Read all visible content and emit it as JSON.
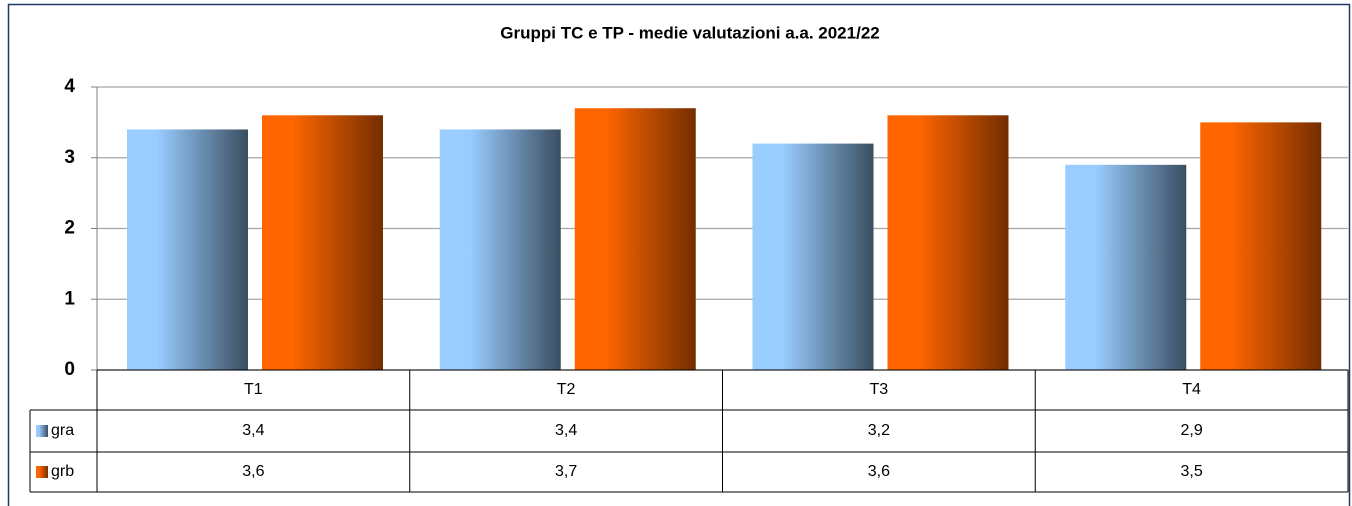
{
  "chart_data": {
    "type": "bar",
    "title": "Gruppi TC e TP - medie valutazioni a.a. 2021/22",
    "categories": [
      "T1",
      "T2",
      "T3",
      "T4"
    ],
    "series": [
      {
        "name": "gra",
        "color": "#99ccff",
        "values": [
          3.4,
          3.4,
          3.2,
          2.9
        ],
        "value_labels": [
          "3,4",
          "3,4",
          "3,2",
          "2,9"
        ]
      },
      {
        "name": "grb",
        "color": "#ff6600",
        "values": [
          3.6,
          3.7,
          3.6,
          3.5
        ],
        "value_labels": [
          "3,6",
          "3,7",
          "3,6",
          "3,5"
        ]
      }
    ],
    "ylim": [
      0,
      4
    ],
    "yticks": [
      0,
      1,
      2,
      3,
      4
    ],
    "grid": true,
    "legend": "table"
  }
}
